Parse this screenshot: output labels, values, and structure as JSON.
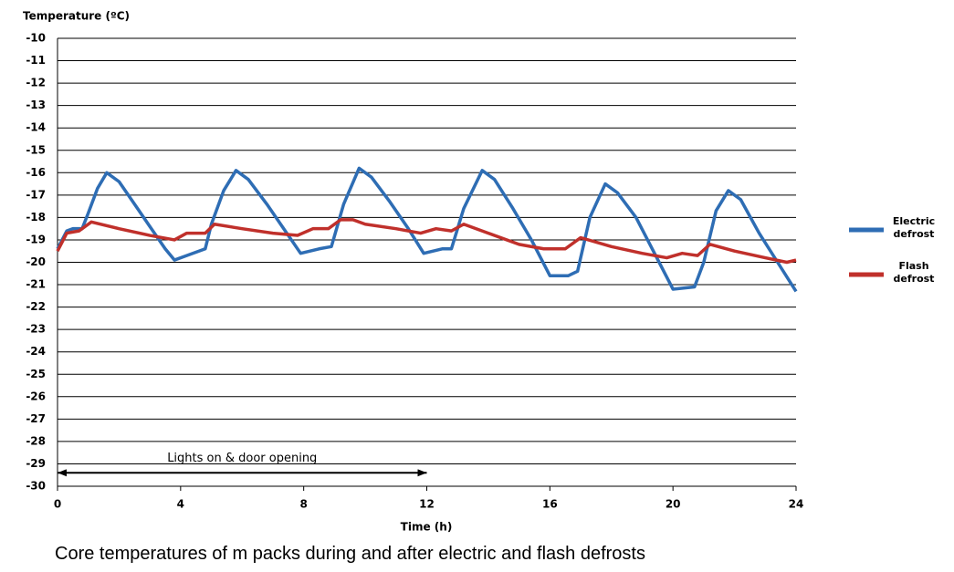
{
  "chart_data": {
    "type": "line",
    "y_axis_label": "Temperature (ºC)",
    "x_axis_label": "Time (h)",
    "caption": "Core temperatures of m packs during and after electric and flash defrosts",
    "xlim": [
      0,
      24
    ],
    "xticks": [
      0,
      4,
      8,
      12,
      16,
      20,
      24
    ],
    "ylim": [
      -30,
      -10
    ],
    "yticks": [
      -10,
      -11,
      -12,
      -13,
      -14,
      -15,
      -16,
      -17,
      -18,
      -19,
      -20,
      -21,
      -22,
      -23,
      -24,
      -25,
      -26,
      -27,
      -28,
      -29,
      -30
    ],
    "grid": true,
    "legend": "right",
    "annotation": {
      "text": "Lights on & door opening",
      "x": [
        0,
        12
      ],
      "y": -29.4
    },
    "series": [
      {
        "name": "Electric defrost",
        "color": "#2e6db4",
        "x": [
          0,
          0.3,
          0.5,
          0.8,
          1.0,
          1.3,
          1.6,
          2.0,
          2.5,
          3.0,
          3.5,
          3.8,
          4.2,
          4.8,
          5.0,
          5.4,
          5.8,
          6.2,
          6.8,
          7.4,
          7.9,
          8.5,
          8.9,
          9.3,
          9.8,
          10.2,
          10.8,
          11.4,
          11.9,
          12.5,
          12.8,
          13.2,
          13.8,
          14.2,
          14.8,
          15.4,
          16.0,
          16.6,
          16.9,
          17.3,
          17.8,
          18.2,
          18.8,
          19.4,
          20.0,
          20.7,
          21.0,
          21.4,
          21.8,
          22.2,
          22.8,
          23.4,
          24.0
        ],
        "values": [
          -19.4,
          -18.6,
          -18.5,
          -18.5,
          -17.8,
          -16.7,
          -16.0,
          -16.4,
          -17.4,
          -18.4,
          -19.4,
          -19.9,
          -19.7,
          -19.4,
          -18.3,
          -16.8,
          -15.9,
          -16.3,
          -17.4,
          -18.6,
          -19.6,
          -19.4,
          -19.3,
          -17.4,
          -15.8,
          -16.2,
          -17.3,
          -18.5,
          -19.6,
          -19.4,
          -19.4,
          -17.6,
          -15.9,
          -16.3,
          -17.6,
          -19.0,
          -20.6,
          -20.6,
          -20.4,
          -18.0,
          -16.5,
          -16.9,
          -18.0,
          -19.6,
          -21.2,
          -21.1,
          -20.0,
          -17.7,
          -16.8,
          -17.2,
          -18.7,
          -20.0,
          -21.3
        ]
      },
      {
        "name": "Flash defrost",
        "color": "#c0302b",
        "x": [
          0,
          0.3,
          0.7,
          1.1,
          2.0,
          3.0,
          3.8,
          4.2,
          4.8,
          5.1,
          6.0,
          7.0,
          7.8,
          8.3,
          8.8,
          9.2,
          9.6,
          10.0,
          11.0,
          11.8,
          12.3,
          12.8,
          13.2,
          14.0,
          15.0,
          15.8,
          16.5,
          17.0,
          18.0,
          19.0,
          19.8,
          20.3,
          20.8,
          21.2,
          22.0,
          23.0,
          23.7,
          24.0
        ],
        "values": [
          -19.5,
          -18.7,
          -18.6,
          -18.2,
          -18.5,
          -18.8,
          -19.0,
          -18.7,
          -18.7,
          -18.3,
          -18.5,
          -18.7,
          -18.8,
          -18.5,
          -18.5,
          -18.1,
          -18.1,
          -18.3,
          -18.5,
          -18.7,
          -18.5,
          -18.6,
          -18.3,
          -18.7,
          -19.2,
          -19.4,
          -19.4,
          -18.9,
          -19.3,
          -19.6,
          -19.8,
          -19.6,
          -19.7,
          -19.2,
          -19.5,
          -19.8,
          -20.0,
          -19.9
        ]
      }
    ]
  }
}
